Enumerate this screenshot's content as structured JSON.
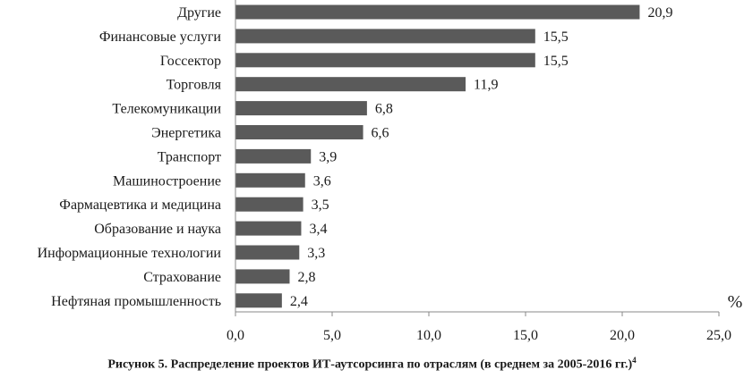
{
  "chart_data": {
    "type": "bar",
    "orientation": "horizontal",
    "categories": [
      "Другие",
      "Финансовые услуги",
      "Госсектор",
      "Торговля",
      "Телекомуникации",
      "Энергетика",
      "Транспорт",
      "Машиностроение",
      "Фармацевтика и медицина",
      "Образование и наука",
      "Информационные технологии",
      "Страхование",
      "Нефтяная промышленность"
    ],
    "values": [
      20.9,
      15.5,
      15.5,
      11.9,
      6.8,
      6.6,
      3.9,
      3.6,
      3.5,
      3.4,
      3.3,
      2.8,
      2.4
    ],
    "value_labels": [
      "20,9",
      "15,5",
      "15,5",
      "11,9",
      "6,8",
      "6,6",
      "3,9",
      "3,6",
      "3,5",
      "3,4",
      "3,3",
      "2,8",
      "2,4"
    ],
    "xlim": [
      0,
      25
    ],
    "xticks": [
      0,
      5,
      10,
      15,
      20,
      25
    ],
    "xtick_labels": [
      "0,0",
      "5,0",
      "10,0",
      "15,0",
      "20,0",
      "25,0"
    ],
    "xlabel": "%",
    "grid": false,
    "bar_color": "#5a5a5a"
  },
  "caption": {
    "text": "Рисунок 5. Распределение проектов ИТ-аутсорсинга по отраслям (в среднем за 2005-2016 гг.)",
    "footnote": "4"
  }
}
